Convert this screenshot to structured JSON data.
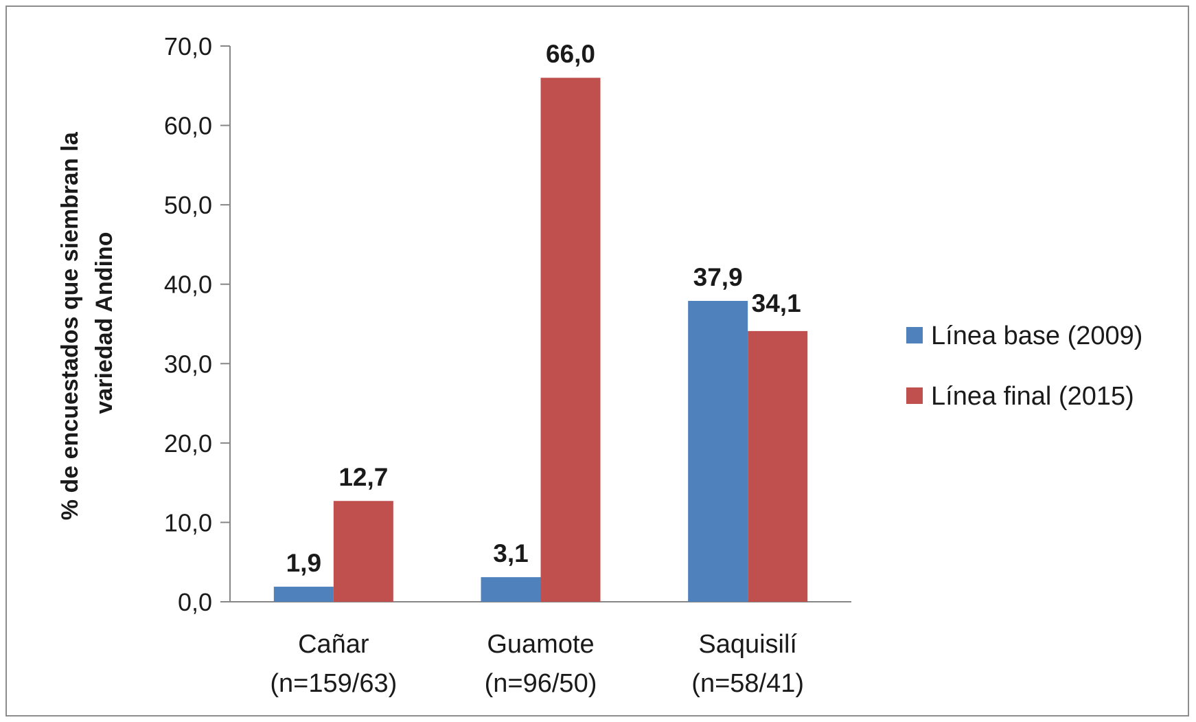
{
  "chart_data": {
    "type": "bar",
    "title": "",
    "ylabel_lines": [
      "% de encuestados que siembran la",
      "variedad Andino"
    ],
    "categories": [
      [
        "Cañar",
        "(n=159/63)"
      ],
      [
        "Guamote",
        "(n=96/50)"
      ],
      [
        "Saquisilí",
        "(n=58/41)"
      ]
    ],
    "series": [
      {
        "name": "Línea base (2009)",
        "color": "#4f81bd",
        "values": [
          1.9,
          3.1,
          37.9
        ],
        "labels": [
          "1,9",
          "3,1",
          "37,9"
        ]
      },
      {
        "name": "Línea final (2015)",
        "color": "#c0504d",
        "values": [
          12.7,
          66.0,
          34.1
        ],
        "labels": [
          "12,7",
          "66,0",
          "34,1"
        ]
      }
    ],
    "ylim": [
      0,
      70
    ],
    "yticks": [
      0,
      10,
      20,
      30,
      40,
      50,
      60,
      70
    ],
    "ytick_labels": [
      "0,0",
      "10,0",
      "20,0",
      "30,0",
      "40,0",
      "50,0",
      "60,0",
      "70,0"
    ],
    "grid": false,
    "legend_position": "right"
  }
}
